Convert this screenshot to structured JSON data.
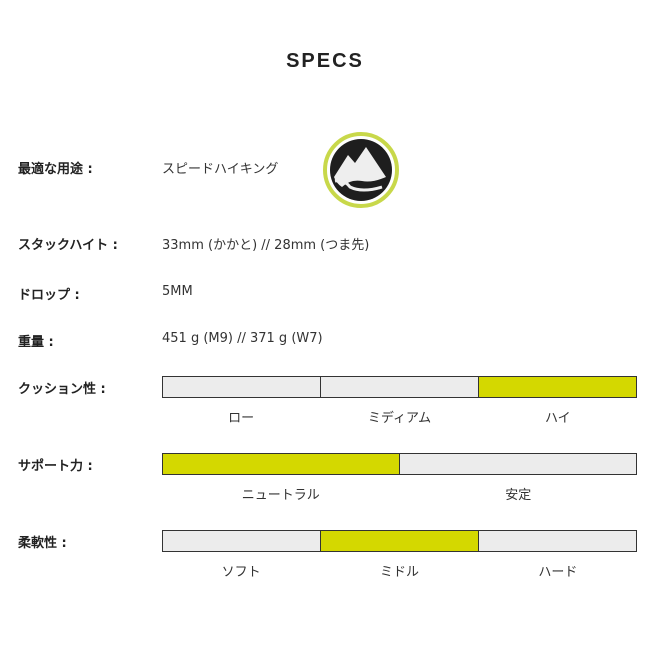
{
  "title": "SPECS",
  "specs": [
    {
      "label": "最適な用途 :",
      "value": "スピードハイキング",
      "icon": "speed-hiking-mountain-icon"
    },
    {
      "label": "スタックハイト :",
      "value": "33mm (かかと) // 28mm (つま先)"
    },
    {
      "label": "ドロップ :",
      "value": "5MM"
    },
    {
      "label": "重量 :",
      "value": "451 g (M9) // 371 g (W7)"
    }
  ],
  "scales": [
    {
      "label": "クッション性 :",
      "segments": [
        "ロー",
        "ミディアム",
        "ハイ"
      ],
      "selected": [
        2
      ]
    },
    {
      "label": "サポート力 :",
      "segments": [
        "ニュートラル",
        "安定"
      ],
      "selected": [
        0
      ]
    },
    {
      "label": "柔軟性 :",
      "segments": [
        "ソフト",
        "ミドル",
        "ハード"
      ],
      "selected": [
        1
      ]
    }
  ],
  "colors": {
    "accent": "#d4d800",
    "inactive": "#ececec",
    "badge_ring": "#c8d84a"
  }
}
